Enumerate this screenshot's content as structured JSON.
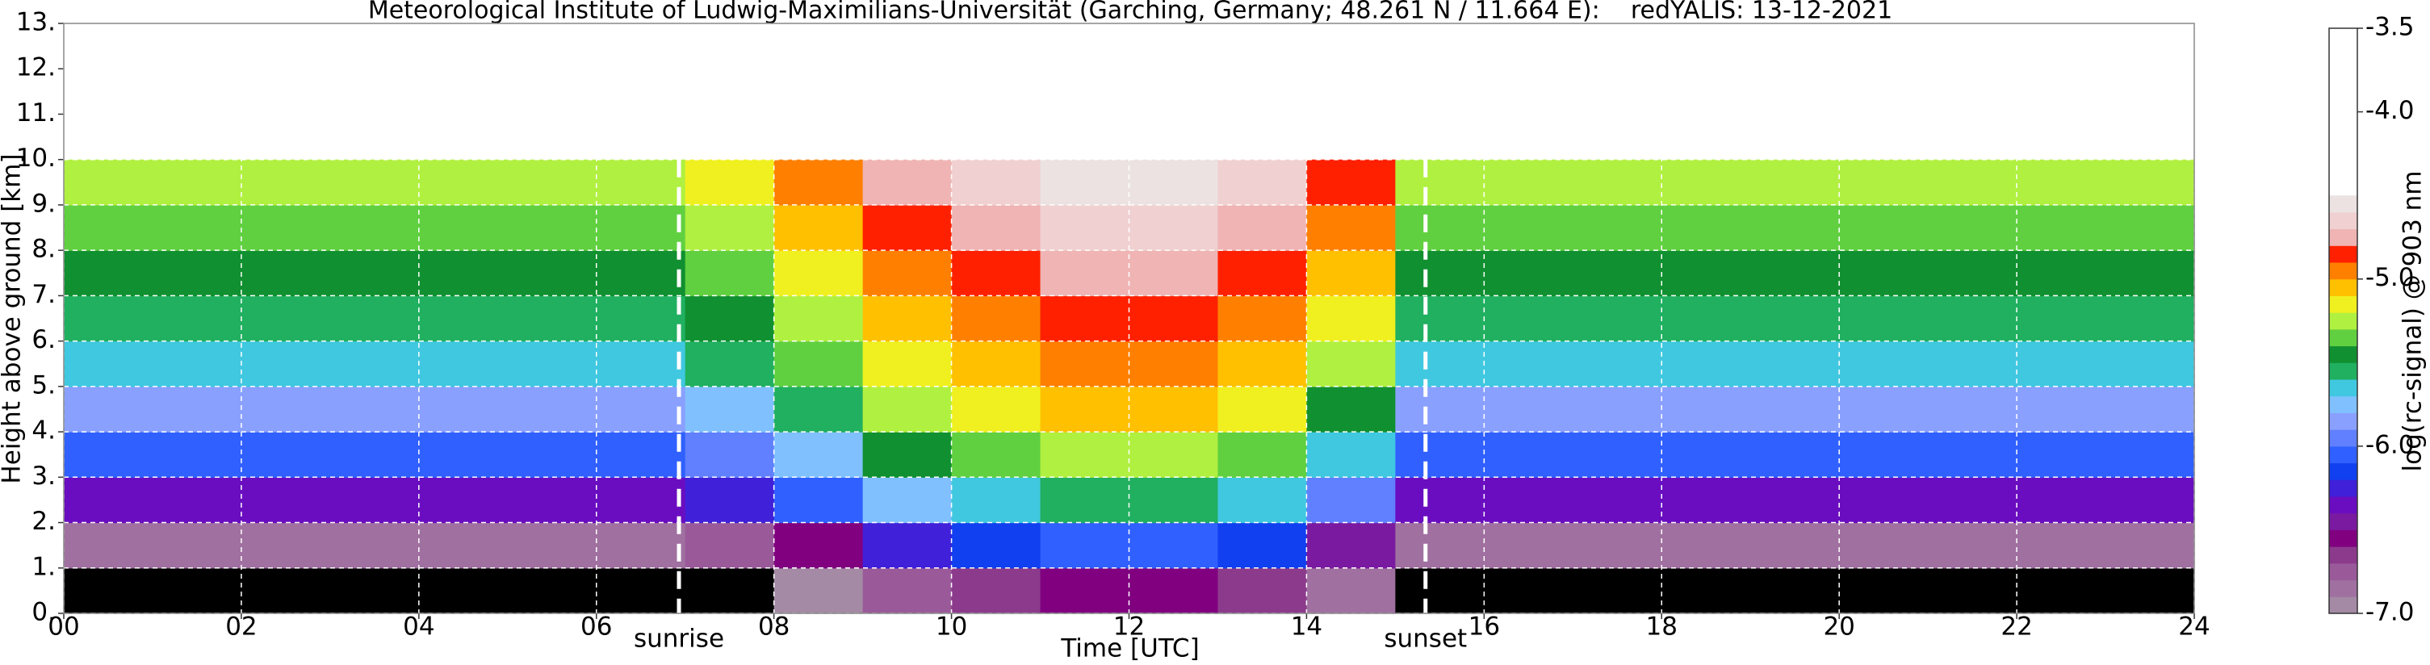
{
  "chart_data": {
    "type": "heatmap",
    "title": "Meteorological Institute of Ludwig-Maximilians-Universität (Garching, Germany; 48.261 N / 11.664 E):    redYALIS: 13-12-2021",
    "xlabel": "Time [UTC]",
    "ylabel": "Height above ground [km]",
    "colorbar_label": "log(rc-signal) @ 903 nm",
    "xlim": [
      0,
      24
    ],
    "ylim": [
      0,
      13
    ],
    "xticks": [
      {
        "value": 0,
        "label": "00"
      },
      {
        "value": 2,
        "label": "02"
      },
      {
        "value": 4,
        "label": "04"
      },
      {
        "value": 6,
        "label": "06"
      },
      {
        "value": 8,
        "label": "08"
      },
      {
        "value": 10,
        "label": "10"
      },
      {
        "value": 12,
        "label": "12"
      },
      {
        "value": 14,
        "label": "14"
      },
      {
        "value": 16,
        "label": "16"
      },
      {
        "value": 18,
        "label": "18"
      },
      {
        "value": 20,
        "label": "20"
      },
      {
        "value": 22,
        "label": "22"
      },
      {
        "value": 24,
        "label": "24"
      }
    ],
    "yticks": [
      {
        "value": 0,
        "label": "0."
      },
      {
        "value": 1,
        "label": "1."
      },
      {
        "value": 2,
        "label": "2."
      },
      {
        "value": 3,
        "label": "3."
      },
      {
        "value": 4,
        "label": "4."
      },
      {
        "value": 5,
        "label": "5."
      },
      {
        "value": 6,
        "label": "6."
      },
      {
        "value": 7,
        "label": "7."
      },
      {
        "value": 8,
        "label": "8."
      },
      {
        "value": 9,
        "label": "9."
      },
      {
        "value": 10,
        "label": "10."
      },
      {
        "value": 11,
        "label": "11."
      },
      {
        "value": 12,
        "label": "12."
      },
      {
        "value": 13,
        "label": "13."
      }
    ],
    "clim": [
      -7.0,
      -3.5
    ],
    "cticks": [
      {
        "value": -3.5,
        "label": "-3.5"
      },
      {
        "value": -4.0,
        "label": "-4.0"
      },
      {
        "value": -5.0,
        "label": "-5.0"
      },
      {
        "value": -6.0,
        "label": "-6.0"
      },
      {
        "value": -7.0,
        "label": "-7.0"
      }
    ],
    "grid": true,
    "grid_color": "#ffffff",
    "color_range": [
      -7.0,
      -4.5
    ],
    "colors": [
      "#a48aa4",
      "#a070a0",
      "#9a5a9a",
      "#8c3a8c",
      "#800080",
      "#7a1aa0",
      "#6a0dc0",
      "#4020d8",
      "#1040f0",
      "#3060ff",
      "#6080ff",
      "#8aa0ff",
      "#80c0ff",
      "#40c8e0",
      "#20b060",
      "#109030",
      "#60d040",
      "#b0f040",
      "#f0f020",
      "#ffc000",
      "#ff8000",
      "#ff2000",
      "#f0b4b4",
      "#f0d0d0",
      "#ece2e2"
    ],
    "under_color": "#000000",
    "over_color": "#ffffff",
    "xbins": [
      0,
      1,
      2,
      3,
      4,
      5,
      6,
      7,
      8,
      9,
      10,
      11,
      12,
      13,
      14,
      15,
      16,
      17,
      18,
      19,
      20,
      21,
      22,
      23,
      24
    ],
    "ybins": [
      0,
      1,
      2,
      3,
      4,
      5,
      6,
      7,
      8,
      9,
      10
    ],
    "z": [
      [
        -7.2,
        -7.2,
        -7.2,
        -7.2,
        -7.2,
        -7.2,
        -7.2,
        -7.1,
        -7.0,
        -6.8,
        -6.7,
        -6.6,
        -6.6,
        -6.7,
        -6.9,
        -7.2,
        -7.2,
        -7.2,
        -7.2,
        -7.2,
        -7.2,
        -7.2,
        -7.2,
        -7.2
      ],
      [
        -6.9,
        -6.9,
        -6.9,
        -6.9,
        -6.9,
        -6.9,
        -6.9,
        -6.8,
        -6.6,
        -6.3,
        -6.2,
        -6.1,
        -6.1,
        -6.2,
        -6.5,
        -6.9,
        -6.9,
        -6.9,
        -6.9,
        -6.9,
        -6.9,
        -6.9,
        -6.9,
        -6.9
      ],
      [
        -6.4,
        -6.4,
        -6.4,
        -6.4,
        -6.4,
        -6.4,
        -6.4,
        -6.3,
        -6.1,
        -5.8,
        -5.7,
        -5.6,
        -5.6,
        -5.7,
        -6.0,
        -6.4,
        -6.4,
        -6.4,
        -6.4,
        -6.4,
        -6.4,
        -6.4,
        -6.4,
        -6.4
      ],
      [
        -6.1,
        -6.1,
        -6.1,
        -6.1,
        -6.1,
        -6.1,
        -6.1,
        -6.0,
        -5.8,
        -5.5,
        -5.4,
        -5.3,
        -5.3,
        -5.4,
        -5.7,
        -6.1,
        -6.1,
        -6.1,
        -6.1,
        -6.1,
        -6.1,
        -6.1,
        -6.1,
        -6.1
      ],
      [
        -5.9,
        -5.9,
        -5.9,
        -5.9,
        -5.9,
        -5.9,
        -5.9,
        -5.8,
        -5.6,
        -5.3,
        -5.2,
        -5.1,
        -5.1,
        -5.2,
        -5.5,
        -5.9,
        -5.9,
        -5.9,
        -5.9,
        -5.9,
        -5.9,
        -5.9,
        -5.9,
        -5.9
      ],
      [
        -5.7,
        -5.7,
        -5.7,
        -5.7,
        -5.7,
        -5.7,
        -5.7,
        -5.6,
        -5.4,
        -5.2,
        -5.1,
        -5.0,
        -5.0,
        -5.1,
        -5.3,
        -5.7,
        -5.7,
        -5.7,
        -5.7,
        -5.7,
        -5.7,
        -5.7,
        -5.7,
        -5.7
      ],
      [
        -5.6,
        -5.6,
        -5.6,
        -5.6,
        -5.6,
        -5.6,
        -5.6,
        -5.5,
        -5.3,
        -5.1,
        -5.0,
        -4.9,
        -4.9,
        -5.0,
        -5.2,
        -5.6,
        -5.6,
        -5.6,
        -5.6,
        -5.6,
        -5.6,
        -5.6,
        -5.6,
        -5.6
      ],
      [
        -5.5,
        -5.5,
        -5.5,
        -5.5,
        -5.5,
        -5.5,
        -5.5,
        -5.4,
        -5.2,
        -5.0,
        -4.9,
        -4.8,
        -4.8,
        -4.9,
        -5.1,
        -5.5,
        -5.5,
        -5.5,
        -5.5,
        -5.5,
        -5.5,
        -5.5,
        -5.5,
        -5.5
      ],
      [
        -5.4,
        -5.4,
        -5.4,
        -5.4,
        -5.4,
        -5.4,
        -5.4,
        -5.3,
        -5.1,
        -4.9,
        -4.8,
        -4.7,
        -4.7,
        -4.8,
        -5.0,
        -5.4,
        -5.4,
        -5.4,
        -5.4,
        -5.4,
        -5.4,
        -5.4,
        -5.4,
        -5.4
      ],
      [
        -5.3,
        -5.3,
        -5.3,
        -5.3,
        -5.3,
        -5.3,
        -5.3,
        -5.2,
        -5.0,
        -4.8,
        -4.7,
        -4.6,
        -4.6,
        -4.7,
        -4.9,
        -5.3,
        -5.3,
        -5.3,
        -5.3,
        -5.3,
        -5.3,
        -5.3,
        -5.3,
        -5.3
      ]
    ],
    "annotations": [
      {
        "text": "sunrise",
        "x": 6.93
      },
      {
        "text": "sunset",
        "x": 15.34
      }
    ]
  }
}
